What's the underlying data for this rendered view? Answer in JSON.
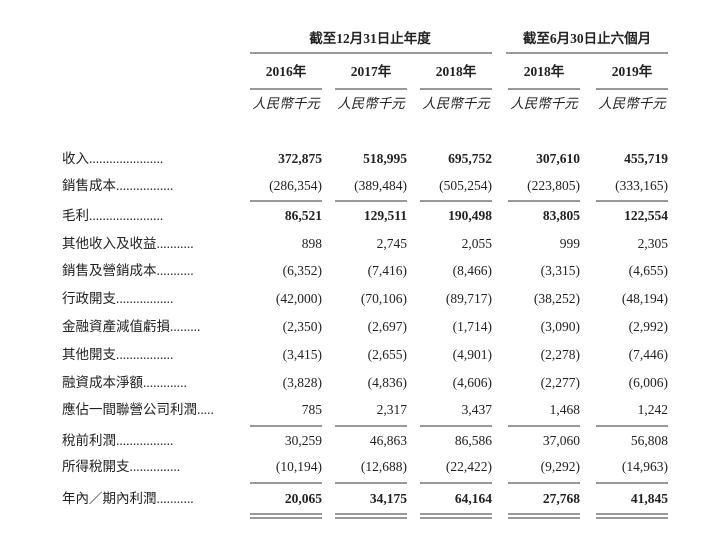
{
  "header": {
    "groups": [
      "截至12月31日止年度",
      "截至6月30日止六個月"
    ],
    "years": [
      "2016年",
      "2017年",
      "2018年",
      "2018年",
      "2019年"
    ],
    "units": [
      "人民幣千元",
      "人民幣千元",
      "人民幣千元",
      "人民幣千元",
      "人民幣千元"
    ]
  },
  "rows": [
    {
      "label": "收入......................",
      "values": [
        "372,875",
        "518,995",
        "695,752",
        "307,610",
        "455,719"
      ]
    },
    {
      "label": "銷售成本.................",
      "values": [
        "(286,354)",
        "(389,484)",
        "(505,254)",
        "(223,805)",
        "(333,165)"
      ]
    },
    {
      "label": "毛利......................",
      "values": [
        "86,521",
        "129,511",
        "190,498",
        "83,805",
        "122,554"
      ]
    },
    {
      "label": "其他收入及收益...........",
      "values": [
        "898",
        "2,745",
        "2,055",
        "999",
        "2,305"
      ]
    },
    {
      "label": "銷售及營銷成本...........",
      "values": [
        "(6,352)",
        "(7,416)",
        "(8,466)",
        "(3,315)",
        "(4,655)"
      ]
    },
    {
      "label": "行政開支.................",
      "values": [
        "(42,000)",
        "(70,106)",
        "(89,717)",
        "(38,252)",
        "(48,194)"
      ]
    },
    {
      "label": "金融資產減值虧損.........",
      "values": [
        "(2,350)",
        "(2,697)",
        "(1,714)",
        "(3,090)",
        "(2,992)"
      ]
    },
    {
      "label": "其他開支.................",
      "values": [
        "(3,415)",
        "(2,655)",
        "(4,901)",
        "(2,278)",
        "(7,446)"
      ]
    },
    {
      "label": "融資成本淨額.............",
      "values": [
        "(3,828)",
        "(4,836)",
        "(4,606)",
        "(2,277)",
        "(6,006)"
      ]
    },
    {
      "label": "應佔一間聯營公司利潤.....",
      "values": [
        "785",
        "2,317",
        "3,437",
        "1,468",
        "1,242"
      ]
    },
    {
      "label": "稅前利潤.................",
      "values": [
        "30,259",
        "46,863",
        "86,586",
        "37,060",
        "56,808"
      ]
    },
    {
      "label": "所得稅開支...............",
      "values": [
        "(10,194)",
        "(12,688)",
        "(22,422)",
        "(9,292)",
        "(14,963)"
      ]
    },
    {
      "label": "年內／期內利潤...........",
      "values": [
        "20,065",
        "34,175",
        "64,164",
        "27,768",
        "41,845"
      ]
    }
  ]
}
